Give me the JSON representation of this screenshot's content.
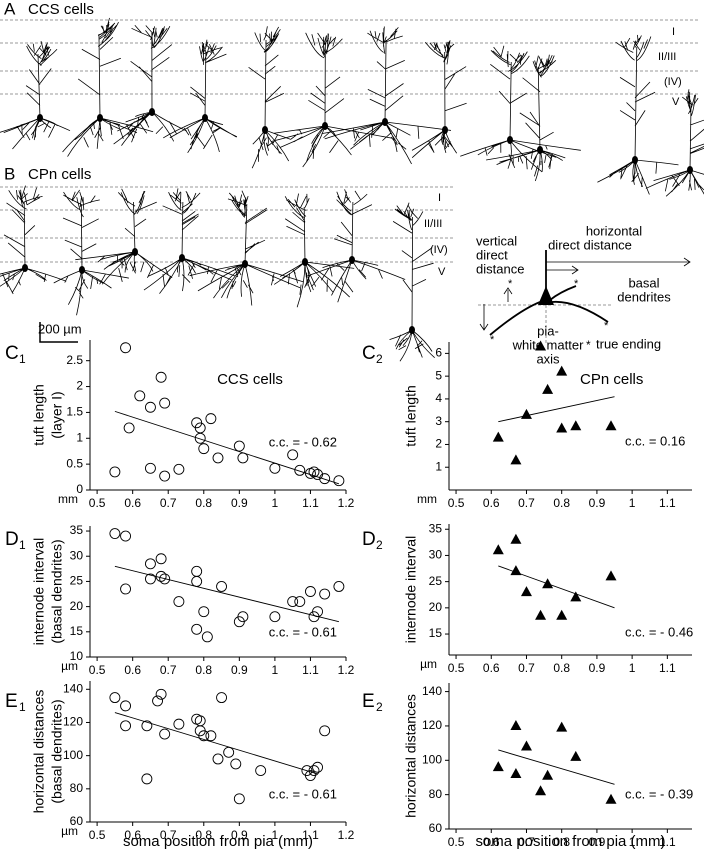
{
  "panels": [
    {
      "letter": "A",
      "title": "CCS cells",
      "layers": [
        "I",
        "II/III",
        "(IV)",
        "V"
      ]
    },
    {
      "letter": "B",
      "title": "CPn cells",
      "layers": [
        "I",
        "II/III",
        "(IV)",
        "V"
      ]
    }
  ],
  "scale_bar": "200 µm",
  "schematic": {
    "vertical": [
      "vertical",
      "direct",
      "distance"
    ],
    "horizontal": [
      "horizontal",
      "direct distance"
    ],
    "basal": [
      "basal",
      "dendrites"
    ],
    "axis": [
      "pia-",
      "white matter",
      "axis"
    ],
    "ending": "true ending",
    "asterisk": "*"
  },
  "chart_data": [
    {
      "type": "scatter",
      "panel": "C",
      "panel_sub": "1",
      "title": "CCS cells",
      "ylabel": [
        "tuft length",
        "(layer I)"
      ],
      "unit": "mm",
      "annotation": "c.c. = - 0.62",
      "marker": "circle",
      "color": "#000000",
      "x": [
        0.55,
        0.58,
        0.59,
        0.62,
        0.65,
        0.65,
        0.68,
        0.69,
        0.69,
        0.73,
        0.78,
        0.79,
        0.79,
        0.8,
        0.82,
        0.84,
        0.9,
        0.91,
        1.0,
        1.05,
        1.07,
        1.1,
        1.11,
        1.12,
        1.14,
        1.18
      ],
      "values": [
        0.35,
        2.75,
        1.2,
        1.82,
        1.6,
        0.42,
        2.18,
        1.68,
        0.27,
        0.4,
        1.3,
        1.0,
        1.2,
        0.8,
        1.38,
        0.62,
        0.85,
        0.62,
        0.42,
        0.68,
        0.38,
        0.32,
        0.35,
        0.3,
        0.22,
        0.18
      ],
      "fit": {
        "x": [
          0.55,
          1.18
        ],
        "y": [
          1.52,
          0.12
        ]
      },
      "xlim": [
        0.48,
        1.2
      ],
      "ylim": [
        0,
        2.9
      ],
      "xticks": [
        0.5,
        0.6,
        0.7,
        0.8,
        0.9,
        1,
        1.1,
        1.2
      ],
      "yticks": [
        0,
        0.5,
        1,
        1.5,
        2,
        2.5
      ]
    },
    {
      "type": "scatter",
      "panel": "C",
      "panel_sub": "2",
      "title": "CPn cells",
      "ylabel": [
        "tuft length"
      ],
      "unit": "mm",
      "annotation": "c.c. = 0.16",
      "marker": "triangle",
      "color": "#000000",
      "x": [
        0.62,
        0.67,
        0.7,
        0.74,
        0.76,
        0.8,
        0.8,
        0.84,
        0.94
      ],
      "values": [
        2.3,
        1.3,
        3.3,
        6.3,
        4.4,
        5.2,
        2.7,
        2.8,
        2.8
      ],
      "fit": {
        "x": [
          0.62,
          0.95
        ],
        "y": [
          3.0,
          4.1
        ]
      },
      "xlim": [
        0.48,
        1.17
      ],
      "ylim": [
        0,
        6.5
      ],
      "xticks": [
        0.5,
        0.6,
        0.7,
        0.8,
        0.9,
        1,
        1.1
      ],
      "yticks": [
        1,
        2,
        3,
        4,
        5,
        6
      ]
    },
    {
      "type": "scatter",
      "panel": "D",
      "panel_sub": "1",
      "ylabel": [
        "internode interval",
        "(basal dendrites)"
      ],
      "unit": "µm",
      "annotation": "c.c. = - 0.61",
      "marker": "circle",
      "color": "#000000",
      "x": [
        0.55,
        0.58,
        0.58,
        0.65,
        0.65,
        0.68,
        0.68,
        0.69,
        0.73,
        0.78,
        0.78,
        0.78,
        0.8,
        0.81,
        0.85,
        0.9,
        0.91,
        1.0,
        1.05,
        1.07,
        1.1,
        1.11,
        1.12,
        1.14,
        1.18
      ],
      "values": [
        34.5,
        34,
        23.5,
        28.5,
        25.5,
        26,
        29.5,
        25.5,
        21,
        27,
        25,
        15.5,
        19,
        14,
        24,
        17,
        18,
        18,
        21,
        21,
        23,
        18,
        19,
        22.5,
        24
      ],
      "fit": {
        "x": [
          0.55,
          1.18
        ],
        "y": [
          28,
          17
        ]
      },
      "xlim": [
        0.48,
        1.2
      ],
      "ylim": [
        10,
        36
      ],
      "xticks": [
        0.5,
        0.6,
        0.7,
        0.8,
        0.9,
        1,
        1.1,
        1.2
      ],
      "yticks": [
        10,
        15,
        20,
        25,
        30,
        35
      ]
    },
    {
      "type": "scatter",
      "panel": "D",
      "panel_sub": "2",
      "ylabel": [
        "internode interval"
      ],
      "unit": "µm",
      "annotation": "c.c. = - 0.46",
      "marker": "triangle",
      "color": "#000000",
      "x": [
        0.62,
        0.67,
        0.67,
        0.7,
        0.74,
        0.76,
        0.8,
        0.84,
        0.94
      ],
      "values": [
        31,
        33,
        27,
        23,
        18.5,
        24.5,
        18.5,
        22,
        26
      ],
      "fit": {
        "x": [
          0.62,
          0.95
        ],
        "y": [
          28,
          20
        ]
      },
      "xlim": [
        0.48,
        1.17
      ],
      "ylim": [
        11,
        36
      ],
      "xticks": [
        0.5,
        0.6,
        0.7,
        0.8,
        0.9,
        1,
        1.1
      ],
      "yticks": [
        15,
        20,
        25,
        30,
        35
      ]
    },
    {
      "type": "scatter",
      "panel": "E",
      "panel_sub": "1",
      "ylabel": [
        "horizontal distances",
        "(basal dendrites)"
      ],
      "xlabel": "soma position from pia (mm)",
      "unit": "µm",
      "annotation": "c.c. = - 0.61",
      "marker": "circle",
      "color": "#000000",
      "x": [
        0.55,
        0.58,
        0.58,
        0.64,
        0.64,
        0.67,
        0.68,
        0.69,
        0.73,
        0.78,
        0.79,
        0.79,
        0.8,
        0.82,
        0.84,
        0.85,
        0.87,
        0.89,
        0.9,
        0.96,
        1.09,
        1.1,
        1.11,
        1.12,
        1.14
      ],
      "values": [
        135,
        118,
        130,
        118,
        86,
        133,
        137,
        113,
        119,
        122,
        121,
        115,
        112,
        112,
        98,
        135,
        102,
        95,
        74,
        91,
        91,
        88,
        91,
        93,
        115
      ],
      "fit": {
        "x": [
          0.55,
          1.12
        ],
        "y": [
          126,
          89
        ]
      },
      "xlim": [
        0.48,
        1.2
      ],
      "ylim": [
        60,
        145
      ],
      "xticks": [
        0.5,
        0.6,
        0.7,
        0.8,
        0.9,
        1,
        1.1,
        1.2
      ],
      "yticks": [
        60,
        80,
        100,
        120,
        140
      ]
    },
    {
      "type": "scatter",
      "panel": "E",
      "panel_sub": "2",
      "ylabel": [
        "horizontal distances"
      ],
      "xlabel": "soma position from pia (mm)",
      "annotation": "c.c. = - 0.39",
      "marker": "triangle",
      "color": "#000000",
      "x": [
        0.62,
        0.67,
        0.67,
        0.7,
        0.74,
        0.76,
        0.8,
        0.84,
        0.94
      ],
      "values": [
        96,
        120,
        92,
        108,
        82,
        91,
        119,
        102,
        77
      ],
      "fit": {
        "x": [
          0.62,
          0.95
        ],
        "y": [
          106,
          86
        ]
      },
      "xlim": [
        0.48,
        1.17
      ],
      "ylim": [
        60,
        145
      ],
      "xticks": [
        0.5,
        0.6,
        0.7,
        0.8,
        0.9,
        1,
        1.1
      ],
      "yticks": [
        60,
        80,
        100,
        120,
        140
      ]
    }
  ]
}
